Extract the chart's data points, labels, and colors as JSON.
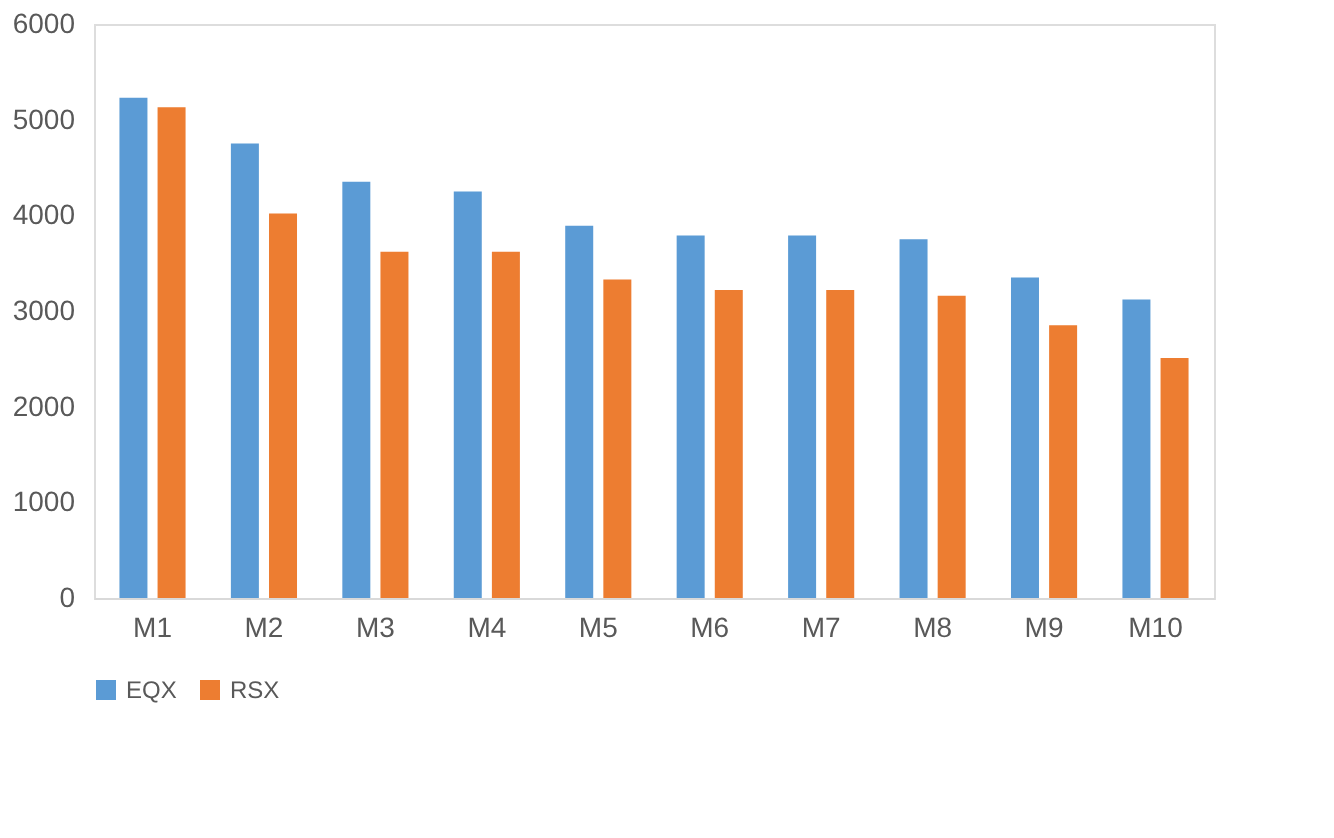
{
  "chart_data": {
    "type": "bar",
    "categories": [
      "M1",
      "M2",
      "M3",
      "M4",
      "M5",
      "M6",
      "M7",
      "M8",
      "M9",
      "M10"
    ],
    "series": [
      {
        "name": "EQX",
        "color": "#5b9bd5",
        "values": [
          5230,
          4750,
          4350,
          4250,
          3890,
          3790,
          3790,
          3750,
          3350,
          3120
        ]
      },
      {
        "name": "RSX",
        "color": "#ed7d31",
        "values": [
          5130,
          4020,
          3620,
          3620,
          3330,
          3220,
          3220,
          3160,
          2850,
          2510
        ]
      }
    ],
    "ylim": [
      0,
      6000
    ],
    "yticks": [
      0,
      1000,
      2000,
      3000,
      4000,
      5000,
      6000
    ],
    "grid": false,
    "legend": "bottom"
  }
}
